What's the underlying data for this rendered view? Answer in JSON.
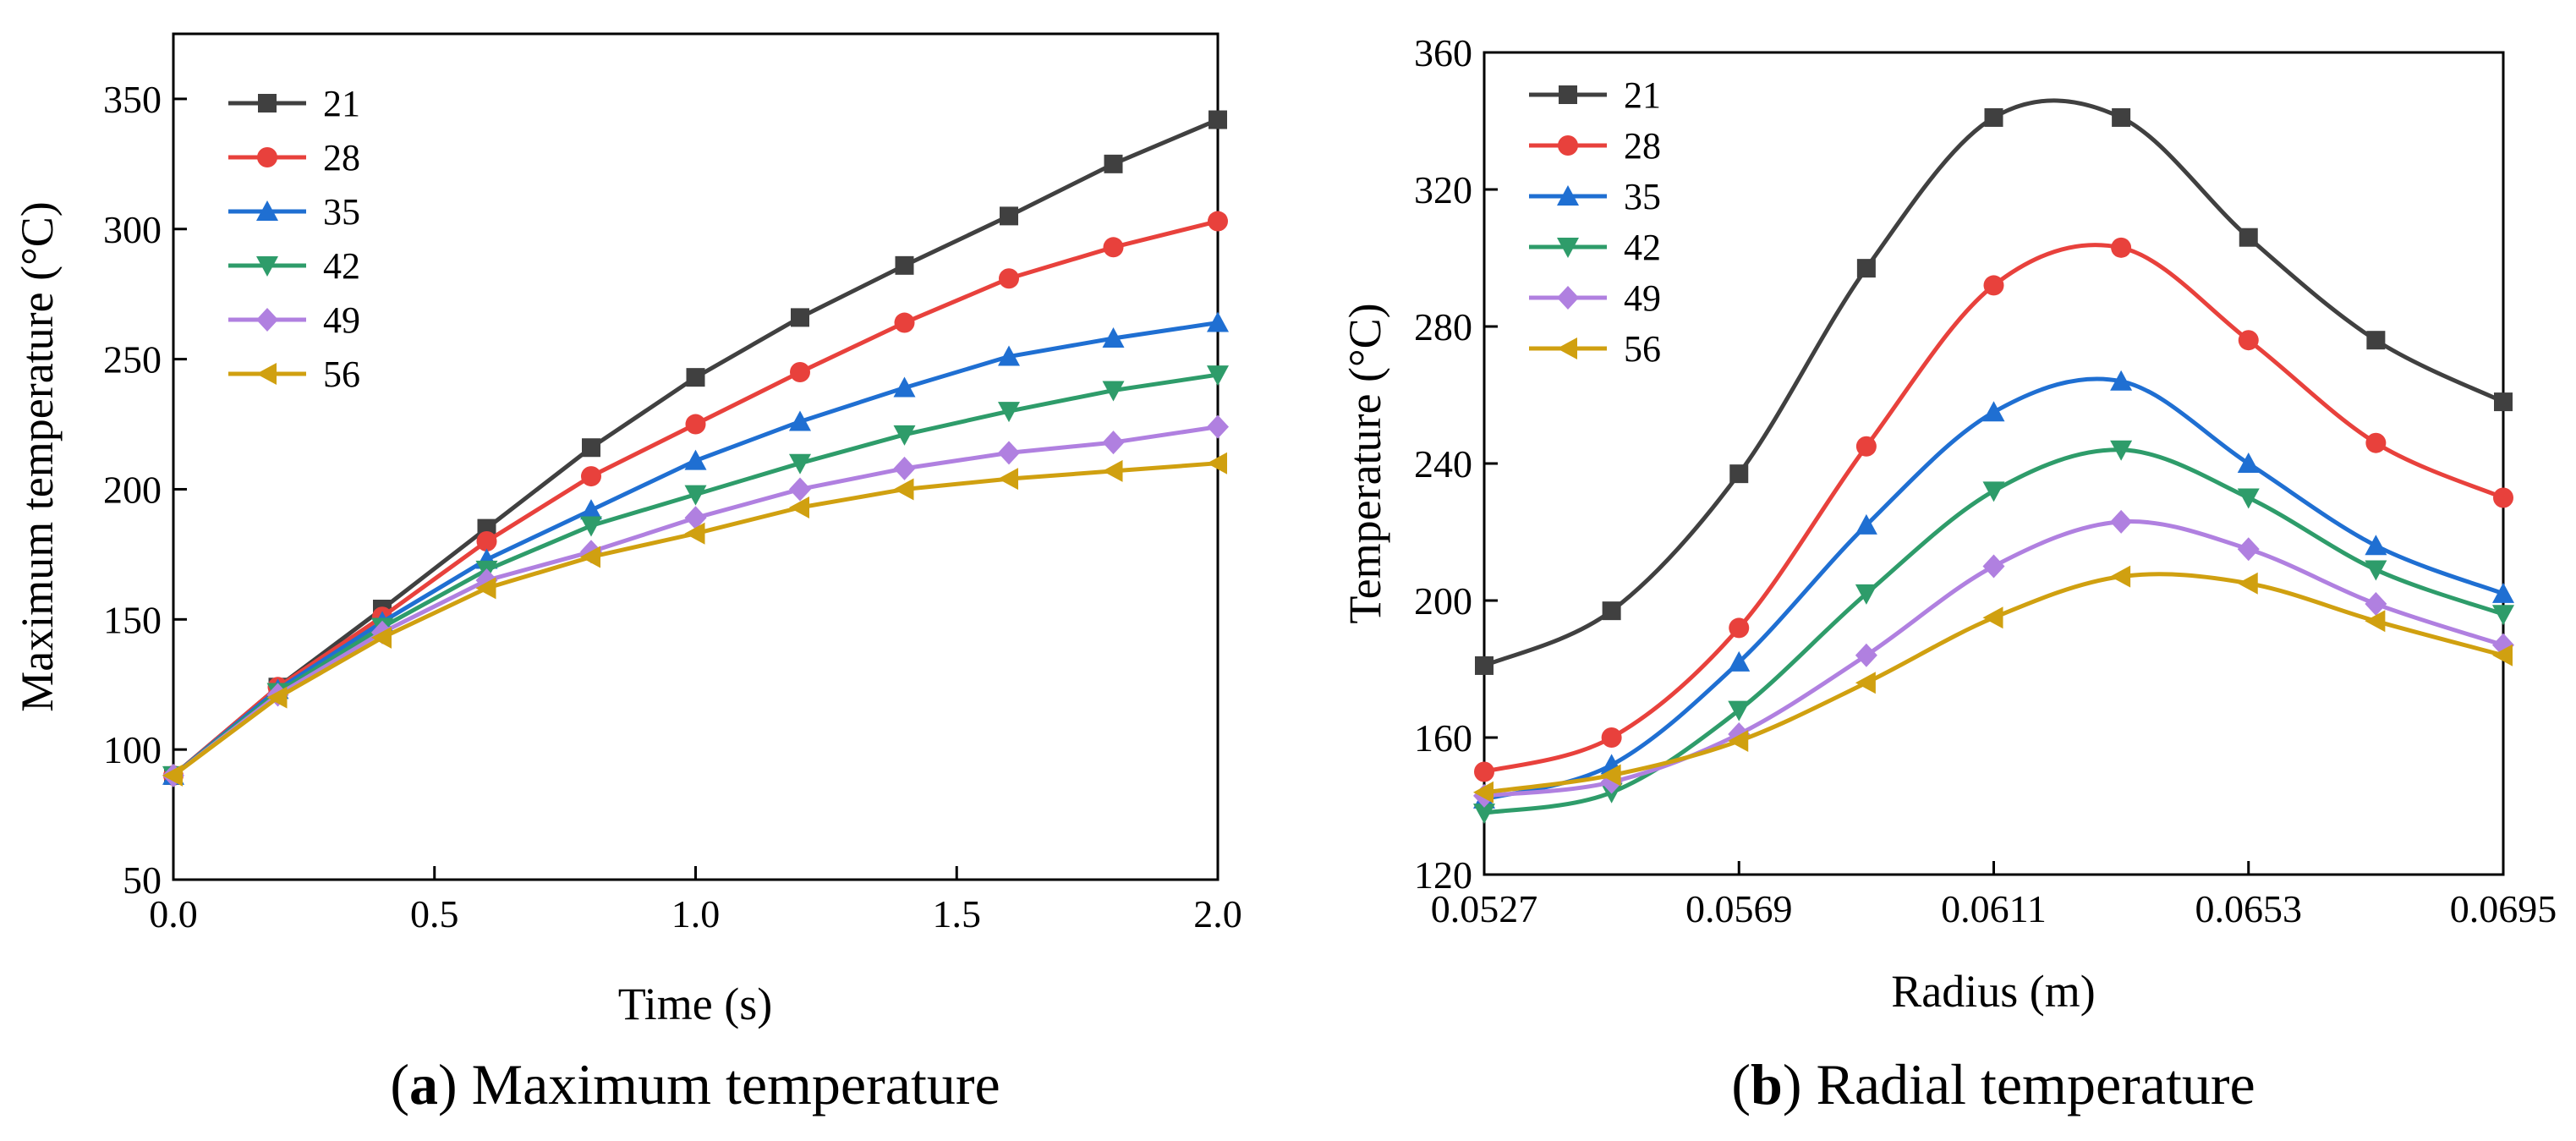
{
  "chart_data": [
    {
      "type": "line",
      "caption_letter": "a",
      "caption_text": "Maximum temperature",
      "xlabel": "Time (s)",
      "ylabel": "Maximum temperature (°C)",
      "xlim": [
        0,
        2
      ],
      "ylim": [
        50,
        375
      ],
      "xticks": [
        "0.0",
        "0.5",
        "1.0",
        "1.5",
        "2.0"
      ],
      "xtick_values": [
        0,
        0.5,
        1.0,
        1.5,
        2.0
      ],
      "yticks": [
        "50",
        "100",
        "150",
        "200",
        "250",
        "300",
        "350"
      ],
      "ytick_values": [
        50,
        100,
        150,
        200,
        250,
        300,
        350
      ],
      "grid": false,
      "legend_position": "top-left",
      "x": [
        0,
        0.2,
        0.4,
        0.6,
        0.8,
        1.0,
        1.2,
        1.4,
        1.6,
        1.8,
        2.0
      ],
      "series": [
        {
          "name": "21",
          "color": "#404040",
          "marker": "square",
          "values": [
            90,
            124,
            154,
            185,
            216,
            243,
            266,
            286,
            305,
            325,
            342
          ]
        },
        {
          "name": "28",
          "color": "#e8413c",
          "marker": "circle",
          "values": [
            90,
            124,
            151,
            180,
            205,
            225,
            245,
            264,
            281,
            293,
            303
          ]
        },
        {
          "name": "35",
          "color": "#1f6fd2",
          "marker": "triangle-up",
          "values": [
            90,
            123,
            149,
            173,
            192,
            211,
            226,
            239,
            251,
            258,
            264
          ]
        },
        {
          "name": "42",
          "color": "#2e9c6a",
          "marker": "triangle-down",
          "values": [
            90,
            122,
            147,
            169,
            186,
            198,
            210,
            221,
            230,
            238,
            244
          ]
        },
        {
          "name": "49",
          "color": "#b080e0",
          "marker": "diamond",
          "values": [
            90,
            121,
            145,
            165,
            176,
            189,
            200,
            208,
            214,
            218,
            224
          ]
        },
        {
          "name": "56",
          "color": "#d0a010",
          "marker": "triangle-left",
          "values": [
            90,
            120,
            143,
            162,
            174,
            183,
            193,
            200,
            204,
            207,
            210
          ]
        }
      ]
    },
    {
      "type": "line",
      "caption_letter": "b",
      "caption_text": "Radial temperature",
      "xlabel": "Radius (m)",
      "ylabel": "Temperature (°C)",
      "xlim": [
        0.0527,
        0.0695
      ],
      "ylim": [
        120,
        360
      ],
      "xticks": [
        "0.0527",
        "0.0569",
        "0.0611",
        "0.0653",
        "0.0695"
      ],
      "xtick_values": [
        0.0527,
        0.0569,
        0.0611,
        0.0653,
        0.0695
      ],
      "yticks": [
        "120",
        "160",
        "200",
        "240",
        "280",
        "320",
        "360"
      ],
      "ytick_values": [
        120,
        160,
        200,
        240,
        280,
        320,
        360
      ],
      "grid": false,
      "legend_position": "top-left",
      "x": [
        0.0527,
        0.0548,
        0.0569,
        0.059,
        0.0611,
        0.0632,
        0.0653,
        0.0674,
        0.0695
      ],
      "series": [
        {
          "name": "21",
          "color": "#404040",
          "marker": "square",
          "values": [
            181,
            197,
            237,
            297,
            341,
            341,
            306,
            276,
            258
          ]
        },
        {
          "name": "28",
          "color": "#e8413c",
          "marker": "circle",
          "values": [
            150,
            160,
            192,
            245,
            292,
            303,
            276,
            246,
            230
          ]
        },
        {
          "name": "35",
          "color": "#1f6fd2",
          "marker": "triangle-up",
          "values": [
            142,
            152,
            182,
            222,
            255,
            264,
            240,
            216,
            202
          ]
        },
        {
          "name": "42",
          "color": "#2e9c6a",
          "marker": "triangle-down",
          "values": [
            138,
            144,
            168,
            202,
            232,
            244,
            230,
            209,
            196
          ]
        },
        {
          "name": "49",
          "color": "#b080e0",
          "marker": "diamond",
          "values": [
            143,
            147,
            161,
            184,
            210,
            223,
            215,
            199,
            187
          ]
        },
        {
          "name": "56",
          "color": "#d0a010",
          "marker": "triangle-left",
          "values": [
            144,
            149,
            159,
            176,
            195,
            207,
            205,
            194,
            184
          ]
        }
      ]
    }
  ]
}
